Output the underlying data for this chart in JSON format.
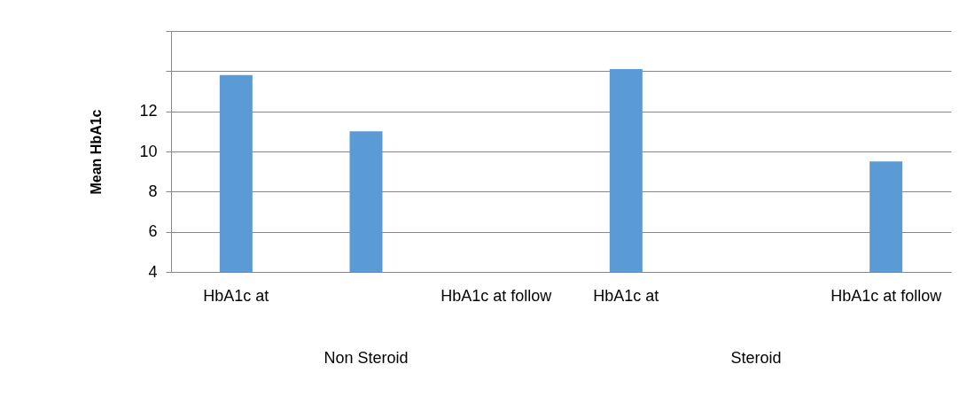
{
  "chart_data": {
    "type": "bar",
    "ylabel": "Mean HbA1c",
    "categories": [
      "HbA1c at",
      null,
      "HbA1c at follow",
      "HbA1c at",
      null,
      "HbA1c at follow"
    ],
    "values": [
      13.8,
      11.0,
      null,
      14.1,
      null,
      9.5
    ],
    "color": "#5b9bd5",
    "ylim": [
      4,
      16
    ],
    "yticks": [
      4,
      6,
      8,
      10,
      12,
      {
        "value": 14,
        "label": null
      },
      {
        "value": 16,
        "label": null
      }
    ],
    "grid": "y",
    "annotations": [
      "Non Steroid",
      "Steroid"
    ]
  }
}
